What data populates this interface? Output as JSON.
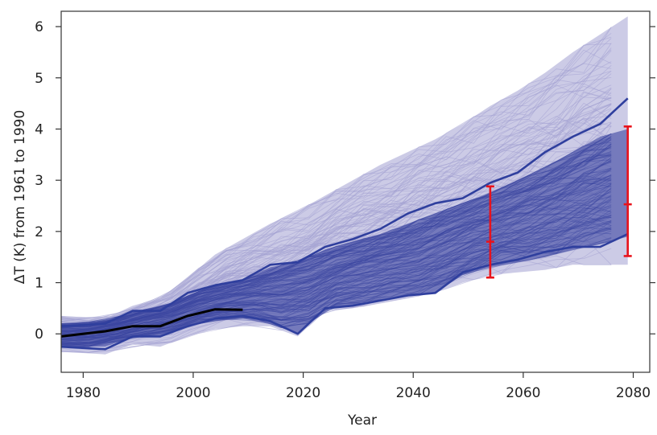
{
  "chart_data": {
    "type": "line",
    "xlabel": "Year",
    "ylabel": "ΔT (K) from 1961 to 1990",
    "xlim": [
      1976,
      2083
    ],
    "ylim": [
      -0.75,
      6.3
    ],
    "x_ticks": [
      1980,
      2000,
      2020,
      2040,
      2060,
      2080
    ],
    "x_tick_labels": [
      "1980",
      "2000",
      "2020",
      "2040",
      "2060",
      "2080"
    ],
    "y_ticks": [
      0,
      1,
      2,
      3,
      4,
      5,
      6
    ],
    "y_tick_labels": [
      "0",
      "1",
      "2",
      "3",
      "4",
      "5",
      "6"
    ],
    "grid": false,
    "ensemble_light": {
      "color": "#a3a1d2",
      "x": [
        1976,
        1984,
        1989,
        1994,
        1999,
        2004,
        2009,
        2014,
        2019,
        2024,
        2029,
        2034,
        2039,
        2044,
        2049,
        2054,
        2059,
        2064,
        2069,
        2074,
        2079
      ],
      "lower": [
        -0.35,
        -0.4,
        -0.2,
        -0.25,
        -0.05,
        0.1,
        0.15,
        0.15,
        -0.05,
        0.45,
        0.5,
        0.6,
        0.7,
        0.8,
        1.0,
        1.15,
        1.2,
        1.25,
        1.35,
        1.35,
        1.35
      ],
      "upper": [
        0.35,
        0.3,
        0.55,
        0.7,
        1.1,
        1.55,
        1.85,
        2.15,
        2.4,
        2.7,
        3.0,
        3.3,
        3.55,
        3.8,
        4.1,
        4.45,
        4.75,
        5.1,
        5.5,
        5.85,
        6.2
      ]
    },
    "ensemble_dark": {
      "color": "#3a45a0",
      "x": [
        1976,
        1984,
        1989,
        1994,
        1999,
        2004,
        2009,
        2014,
        2019,
        2024,
        2029,
        2034,
        2039,
        2044,
        2049,
        2054,
        2059,
        2064,
        2069,
        2074,
        2079
      ],
      "lower": [
        -0.25,
        -0.25,
        -0.05,
        -0.05,
        0.15,
        0.25,
        0.3,
        0.2,
        0.0,
        0.5,
        0.55,
        0.65,
        0.75,
        0.8,
        1.15,
        1.3,
        1.4,
        1.5,
        1.65,
        1.75,
        1.9
      ],
      "upper": [
        0.2,
        0.25,
        0.45,
        0.5,
        0.75,
        0.95,
        1.05,
        1.3,
        1.4,
        1.65,
        1.8,
        1.95,
        2.15,
        2.35,
        2.55,
        2.75,
        3.0,
        3.25,
        3.55,
        3.85,
        4.0
      ]
    },
    "series": [
      {
        "color": "#2f3f9e",
        "x": [
          1976,
          1984,
          1989,
          1994,
          1999,
          2004,
          2009,
          2014,
          2019,
          2024,
          2029,
          2034,
          2039,
          2044,
          2049,
          2054,
          2059,
          2064,
          2069,
          2074,
          2079
        ],
        "y": [
          0.15,
          0.2,
          0.45,
          0.45,
          0.8,
          0.95,
          1.05,
          1.35,
          1.4,
          1.7,
          1.85,
          2.05,
          2.35,
          2.55,
          2.65,
          2.95,
          3.15,
          3.55,
          3.85,
          4.1,
          4.6
        ]
      },
      {
        "color": "#2f3f9e",
        "x": [
          1976,
          1984,
          1989,
          1994,
          1999,
          2004,
          2009,
          2014,
          2019,
          2024,
          2029,
          2034,
          2039,
          2044,
          2049,
          2054,
          2059,
          2064,
          2069,
          2074,
          2079
        ],
        "y": [
          -0.25,
          -0.3,
          -0.05,
          -0.05,
          0.15,
          0.3,
          0.35,
          0.25,
          0.0,
          0.5,
          0.55,
          0.65,
          0.75,
          0.8,
          1.2,
          1.35,
          1.45,
          1.6,
          1.7,
          1.7,
          1.95
        ]
      },
      {
        "color": "#000000",
        "x": [
          1976,
          1984,
          1989,
          1994,
          1999,
          2004,
          2009
        ],
        "y": [
          -0.05,
          0.05,
          0.15,
          0.15,
          0.35,
          0.48,
          0.47
        ]
      }
    ],
    "error_bars": [
      {
        "x": 2054,
        "low": 1.1,
        "mid": 1.8,
        "high": 2.88,
        "color": "#e8121b"
      },
      {
        "x": 2079,
        "low": 1.52,
        "mid": 2.53,
        "high": 4.05,
        "color": "#e8121b"
      }
    ]
  }
}
